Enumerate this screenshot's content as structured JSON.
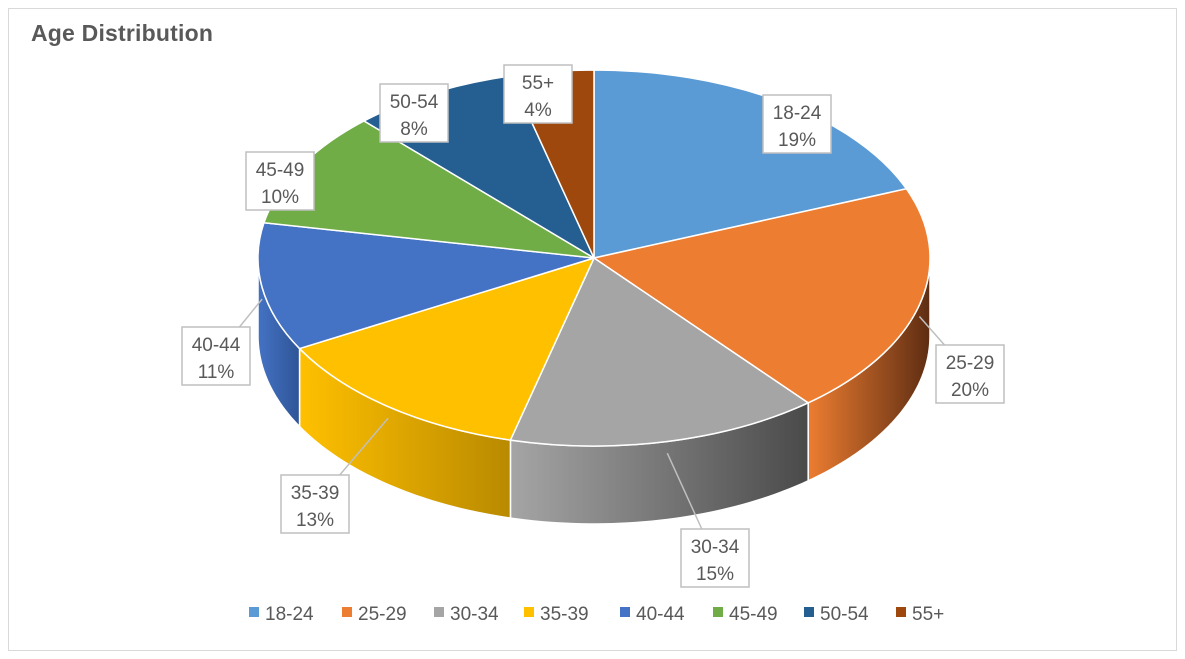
{
  "chart_data": {
    "type": "pie",
    "title": "Age Distribution",
    "three_d": true,
    "legend_position": "bottom",
    "slices": [
      {
        "label": "18-24",
        "value": 19,
        "display": "19%",
        "color": "#5B9BD5",
        "side_color": "#3f6f9b"
      },
      {
        "label": "25-29",
        "value": 20,
        "display": "20%",
        "color": "#ED7D31",
        "side_color": "#5e2d12"
      },
      {
        "label": "30-34",
        "value": 15,
        "display": "15%",
        "color": "#A5A5A5",
        "side_color": "#4a4a4a"
      },
      {
        "label": "35-39",
        "value": 13,
        "display": "13%",
        "color": "#FFC000",
        "side_color": "#b98a00"
      },
      {
        "label": "40-44",
        "value": 11,
        "display": "11%",
        "color": "#4472C4",
        "side_color": "#2f5597"
      },
      {
        "label": "45-49",
        "value": 10,
        "display": "10%",
        "color": "#70AD47",
        "side_color": "#4e7a31"
      },
      {
        "label": "50-54",
        "value": 8,
        "display": "8%",
        "color": "#255E91",
        "side_color": "#1a4266"
      },
      {
        "label": "55+",
        "value": 4,
        "display": "4%",
        "color": "#9E480E",
        "side_color": "#6b300a"
      }
    ]
  }
}
